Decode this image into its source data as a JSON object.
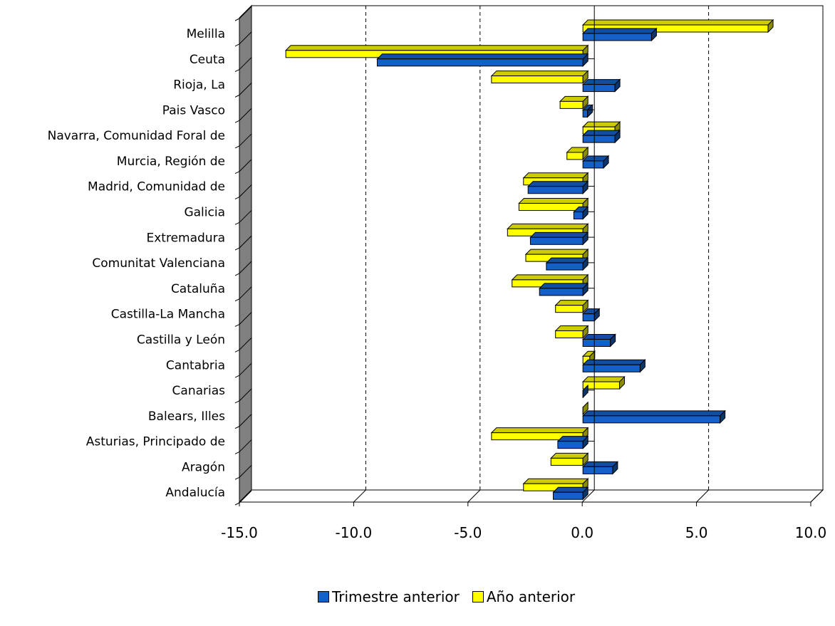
{
  "chart_data": {
    "type": "bar",
    "orientation": "horizontal",
    "title": "",
    "xlabel": "",
    "ylabel": "",
    "xlim": [
      -15,
      10
    ],
    "x_ticks": [
      -15.0,
      -10.0,
      -5.0,
      0.0,
      5.0,
      10.0
    ],
    "x_tick_labels": [
      "-15.0",
      "-10.0",
      "-5.0",
      "0.0",
      "5.0",
      "10.0"
    ],
    "grid": "vertical dashed",
    "legend_position": "bottom",
    "categories": [
      "Andalucía",
      "Aragón",
      "Asturias, Principado de",
      "Balears, Illes",
      "Canarias",
      "Cantabria",
      "Castilla y León",
      "Castilla-La Mancha",
      "Cataluña",
      "Comunitat Valenciana",
      "Extremadura",
      "Galicia",
      "Madrid, Comunidad de",
      "Murcia, Región de",
      "Navarra, Comunidad Foral de",
      "Pais Vasco",
      "Rioja, La",
      "Ceuta",
      "Melilla"
    ],
    "series": [
      {
        "name": "Trimestre anterior",
        "color": "#1560C8",
        "values": [
          -1.3,
          1.3,
          -1.1,
          6.0,
          0.0,
          2.5,
          1.2,
          0.5,
          -1.9,
          -1.6,
          -2.3,
          -0.4,
          -2.4,
          0.9,
          1.4,
          0.2,
          1.4,
          -9.0,
          3.0
        ]
      },
      {
        "name": "Año anterior",
        "color": "#FFFF00",
        "values": [
          -2.6,
          -1.4,
          -4.0,
          0.0,
          1.6,
          0.3,
          -1.2,
          -1.2,
          -3.1,
          -2.5,
          -3.3,
          -2.8,
          -2.6,
          -0.7,
          1.4,
          -1.0,
          -4.0,
          -13.0,
          8.1
        ]
      }
    ]
  }
}
